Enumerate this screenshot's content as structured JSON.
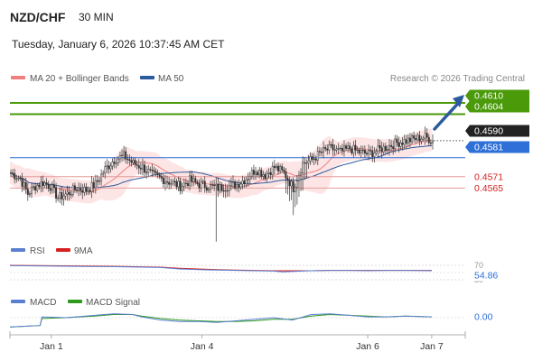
{
  "header": {
    "pair": "NZD/CHF",
    "timeframe": "30 MIN",
    "datetime": "Tuesday, January 6, 2026 10:37:45 AM CET"
  },
  "legend": {
    "ma20": {
      "label": "MA 20 + Bollinger Bands",
      "color": "#f08080"
    },
    "ma50": {
      "label": "MA 50",
      "color": "#2c5a9c"
    },
    "credit": "Research © 2026 Trading Central"
  },
  "rsi_legend": {
    "rsi": {
      "label": "RSI",
      "color": "#5b7fd0"
    },
    "ma9": {
      "label": "9MA",
      "color": "#d62020"
    }
  },
  "macd_legend": {
    "macd": {
      "label": "MACD",
      "color": "#5b7fd0"
    },
    "signal": {
      "label": "MACD Signal",
      "color": "#2e9a1e"
    }
  },
  "chart_data": [
    {
      "type": "candlestick",
      "title": "NZD/CHF",
      "x_ticks": [
        "Jan 1",
        "Jan 4",
        "Jan 6",
        "Jan 7"
      ],
      "y_range": [
        0.4538,
        0.462
      ],
      "levels": [
        {
          "value": 0.461,
          "label": "0.4610",
          "kind": "resistance",
          "color": "#4a9a0a"
        },
        {
          "value": 0.4604,
          "label": "0.4604",
          "kind": "resistance",
          "color": "#4a9a0a"
        },
        {
          "value": 0.459,
          "label": "0.4590",
          "kind": "last-price",
          "color": "#222222"
        },
        {
          "value": 0.4581,
          "label": "0.4581",
          "kind": "pivot",
          "color": "#2e6fd8"
        },
        {
          "value": 0.4571,
          "label": "0.4571",
          "kind": "support",
          "color": "#d62020"
        },
        {
          "value": 0.4565,
          "label": "0.4565",
          "kind": "support",
          "color": "#d62020"
        }
      ],
      "trend_arrow": {
        "from": 0.459,
        "to": 0.461,
        "direction": "up",
        "color": "#2c5a9c"
      },
      "price_path": [
        [
          0,
          0.4573
        ],
        [
          5,
          0.457
        ],
        [
          9,
          0.4562
        ],
        [
          13,
          0.4566
        ],
        [
          17,
          0.4568
        ],
        [
          21,
          0.4566
        ],
        [
          25,
          0.456
        ],
        [
          30,
          0.4562
        ],
        [
          35,
          0.4565
        ],
        [
          40,
          0.4564
        ],
        [
          45,
          0.4567
        ],
        [
          50,
          0.4575
        ],
        [
          55,
          0.458
        ],
        [
          60,
          0.4582
        ],
        [
          65,
          0.4578
        ],
        [
          70,
          0.4576
        ],
        [
          75,
          0.4572
        ],
        [
          80,
          0.457
        ],
        [
          85,
          0.4568
        ],
        [
          90,
          0.4566
        ],
        [
          95,
          0.4569
        ],
        [
          100,
          0.4567
        ],
        [
          105,
          0.4566
        ],
        [
          110,
          0.4565
        ],
        [
          115,
          0.4566
        ],
        [
          120,
          0.4567
        ],
        [
          125,
          0.457
        ],
        [
          130,
          0.4575
        ],
        [
          135,
          0.4572
        ],
        [
          140,
          0.4576
        ],
        [
          145,
          0.4573
        ],
        [
          150,
          0.4565
        ],
        [
          155,
          0.4578
        ],
        [
          160,
          0.458
        ],
        [
          165,
          0.4584
        ],
        [
          170,
          0.4586
        ],
        [
          175,
          0.4584
        ],
        [
          180,
          0.4586
        ],
        [
          185,
          0.4584
        ],
        [
          190,
          0.4583
        ],
        [
          195,
          0.4585
        ],
        [
          200,
          0.4587
        ],
        [
          205,
          0.4589
        ],
        [
          210,
          0.459
        ],
        [
          215,
          0.4591
        ],
        [
          220,
          0.4592
        ],
        [
          224,
          0.459
        ]
      ]
    },
    {
      "type": "line",
      "title": "RSI",
      "value_label": "54.86",
      "level_labels": [
        "70",
        "30"
      ],
      "rsi": [
        [
          0,
          69
        ],
        [
          20,
          68
        ],
        [
          40,
          67
        ],
        [
          60,
          66
        ],
        [
          80,
          64
        ],
        [
          90,
          60
        ],
        [
          100,
          58
        ],
        [
          110,
          57
        ],
        [
          120,
          56
        ],
        [
          130,
          55
        ],
        [
          140,
          54
        ],
        [
          145,
          52
        ],
        [
          150,
          53
        ],
        [
          160,
          55
        ],
        [
          170,
          56
        ],
        [
          180,
          56
        ],
        [
          190,
          55
        ],
        [
          200,
          56
        ],
        [
          210,
          56
        ],
        [
          224,
          55
        ]
      ],
      "ma9": [
        [
          0,
          70
        ],
        [
          20,
          69
        ],
        [
          40,
          68
        ],
        [
          60,
          67
        ],
        [
          80,
          65
        ],
        [
          90,
          62
        ],
        [
          100,
          60
        ],
        [
          110,
          58
        ],
        [
          120,
          57
        ],
        [
          130,
          56
        ],
        [
          140,
          55
        ],
        [
          150,
          55
        ],
        [
          160,
          55
        ],
        [
          170,
          56
        ],
        [
          180,
          56
        ],
        [
          190,
          56
        ],
        [
          200,
          56
        ],
        [
          210,
          56
        ],
        [
          224,
          56
        ]
      ]
    },
    {
      "type": "line",
      "title": "MACD",
      "value_label": "0.00",
      "macd": [
        [
          0,
          -0.0012
        ],
        [
          8,
          -0.0011
        ],
        [
          16,
          -0.001
        ],
        [
          17,
          0.0001
        ],
        [
          30,
          0.0
        ],
        [
          45,
          0.0003
        ],
        [
          55,
          0.0005
        ],
        [
          65,
          0.0004
        ],
        [
          70,
          0.0001
        ],
        [
          80,
          -0.0003
        ],
        [
          90,
          -0.0005
        ],
        [
          100,
          -0.0005
        ],
        [
          110,
          -0.0006
        ],
        [
          120,
          -0.0004
        ],
        [
          130,
          -0.0002
        ],
        [
          140,
          0.0
        ],
        [
          150,
          -0.0003
        ],
        [
          160,
          0.0004
        ],
        [
          170,
          0.0005
        ],
        [
          180,
          0.0003
        ],
        [
          190,
          0.0001
        ],
        [
          200,
          0.0001
        ],
        [
          210,
          0.0002
        ],
        [
          224,
          0.0001
        ]
      ],
      "signal": [
        [
          0,
          -0.0012
        ],
        [
          8,
          -0.0011
        ],
        [
          16,
          -0.001
        ],
        [
          17,
          -0.0001
        ],
        [
          30,
          0.0
        ],
        [
          45,
          0.0002
        ],
        [
          55,
          0.0004
        ],
        [
          65,
          0.0004
        ],
        [
          70,
          0.0002
        ],
        [
          80,
          -0.0001
        ],
        [
          90,
          -0.0003
        ],
        [
          100,
          -0.0004
        ],
        [
          110,
          -0.0005
        ],
        [
          120,
          -0.0005
        ],
        [
          130,
          -0.0004
        ],
        [
          140,
          -0.0002
        ],
        [
          150,
          -0.0002
        ],
        [
          160,
          0.0002
        ],
        [
          170,
          0.0004
        ],
        [
          180,
          0.0003
        ],
        [
          190,
          0.0002
        ],
        [
          200,
          0.0001
        ],
        [
          210,
          0.0002
        ],
        [
          224,
          0.0001
        ]
      ]
    }
  ]
}
